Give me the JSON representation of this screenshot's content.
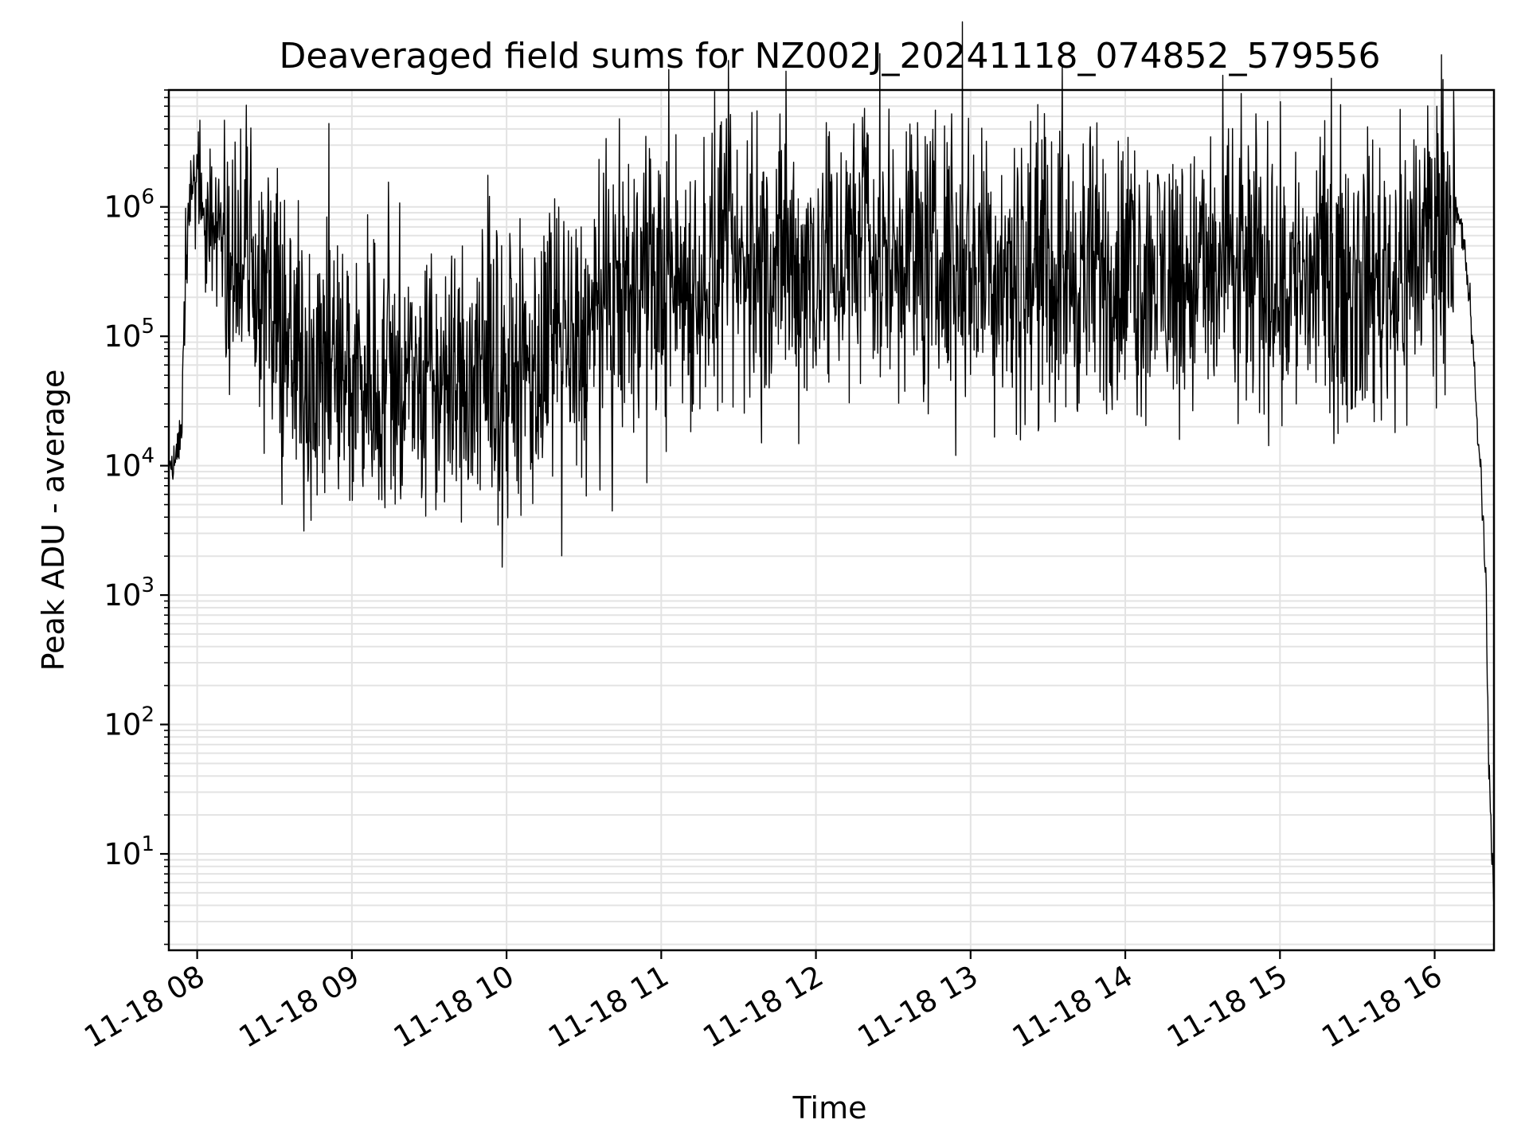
{
  "chart_data": {
    "type": "line",
    "title": "Deaveraged field sums for NZ002J_20241118_074852_579556",
    "xlabel": "Time",
    "ylabel": "Peak ADU - average",
    "y_scale": "log",
    "grid": "major and minor",
    "x_ticks": [
      "11-18 08",
      "11-18 09",
      "11-18 10",
      "11-18 11",
      "11-18 12",
      "11-18 13",
      "11-18 14",
      "11-18 15",
      "11-18 16"
    ],
    "y_ticks": [
      {
        "base": "10",
        "exp": "1"
      },
      {
        "base": "10",
        "exp": "2"
      },
      {
        "base": "10",
        "exp": "3"
      },
      {
        "base": "10",
        "exp": "4"
      },
      {
        "base": "10",
        "exp": "5"
      },
      {
        "base": "10",
        "exp": "6"
      }
    ],
    "xlim": [
      "2024-11-18 07:49",
      "2024-11-18 16:23"
    ],
    "ylim": [
      1.8,
      8000000
    ],
    "line_color": "#000000",
    "series": [
      {
        "x": [
          "2024-11-18 07:49",
          "2024-11-18 07:52",
          "2024-11-18 07:54",
          "2024-11-18 07:55",
          "2024-11-18 07:57",
          "2024-11-18 07:58",
          "2024-11-18 08:00",
          "2024-11-18 08:03",
          "2024-11-18 08:06",
          "2024-11-18 08:10",
          "2024-11-18 08:15",
          "2024-11-18 08:20",
          "2024-11-18 08:25",
          "2024-11-18 08:30",
          "2024-11-18 08:35",
          "2024-11-18 08:40",
          "2024-11-18 08:50",
          "2024-11-18 09:00",
          "2024-11-18 09:15",
          "2024-11-18 09:30",
          "2024-11-18 09:45",
          "2024-11-18 10:00",
          "2024-11-18 10:15",
          "2024-11-18 10:30",
          "2024-11-18 10:45",
          "2024-11-18 11:00",
          "2024-11-18 11:30",
          "2024-11-18 12:00",
          "2024-11-18 12:30",
          "2024-11-18 13:00",
          "2024-11-18 13:30",
          "2024-11-18 14:00",
          "2024-11-18 14:30",
          "2024-11-18 15:00",
          "2024-11-18 15:30",
          "2024-11-18 15:50",
          "2024-11-18 15:58",
          "2024-11-18 16:05",
          "2024-11-18 16:08",
          "2024-11-18 16:10",
          "2024-11-18 16:12",
          "2024-11-18 16:14",
          "2024-11-18 16:16",
          "2024-11-18 16:18",
          "2024-11-18 16:19",
          "2024-11-18 16:20",
          "2024-11-18 16:21",
          "2024-11-18 16:23"
        ],
        "y": [
          9000,
          12000,
          20000,
          200000,
          900000,
          1300000,
          1100000,
          900000,
          750000,
          650000,
          550000,
          400000,
          250000,
          130000,
          75000,
          60000,
          55000,
          50000,
          45000,
          42000,
          40000,
          45000,
          60000,
          90000,
          180000,
          250000,
          320000,
          350000,
          400000,
          340000,
          300000,
          300000,
          290000,
          280000,
          270000,
          300000,
          600000,
          1000000,
          900000,
          700000,
          400000,
          150000,
          30000,
          8000,
          3000,
          1000,
          50,
          4
        ]
      }
    ],
    "spikes": {
      "major_x": [
        "2024-11-18 12:35",
        "2024-11-18 12:37",
        "2024-11-18 15:52",
        "2024-11-18 07:59"
      ],
      "major_y": [
        3800000,
        3600000,
        3300000,
        1700000
      ]
    }
  }
}
